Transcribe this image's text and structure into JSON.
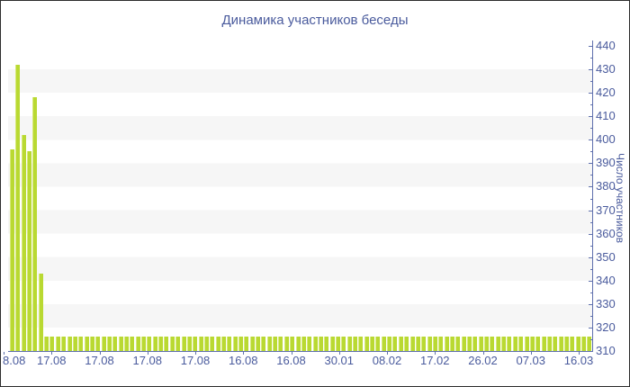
{
  "title": "Динамика участников беседы",
  "colors": {
    "border": "#2e2e2e",
    "text": "#4a5b9d",
    "axis": "#5f70ad",
    "band": "#f6f6f6",
    "bar": "#b9d932",
    "barlight": "#d7e97e"
  },
  "chart_data": {
    "type": "bar",
    "title": "Динамика участников беседы",
    "xlabel": "",
    "ylabel": "Число участников",
    "ylim": [
      310,
      440
    ],
    "y_tick_step": 10,
    "y_tick_labels": [
      440,
      430,
      420,
      410,
      400,
      390,
      380,
      370,
      360,
      350,
      340,
      330,
      320,
      310
    ],
    "x_tick_labels": [
      "8.08",
      "17.08",
      "17.08",
      "17.08",
      "17.08",
      "16.08",
      "16.08",
      "30.01",
      "08.02",
      "17.02",
      "26.02",
      "07.03",
      "16.03"
    ],
    "grid": "horizontal striped bands",
    "legend": null,
    "axis_position": "right",
    "values": [
      396,
      432,
      402,
      395,
      418,
      343,
      316,
      316,
      316,
      316,
      316,
      316,
      316,
      316,
      316,
      316,
      316,
      316,
      316,
      316,
      316,
      316,
      316,
      316,
      316,
      316,
      316,
      316,
      316,
      316,
      316,
      316,
      316,
      316,
      316,
      316,
      316,
      316,
      316,
      316,
      316,
      316,
      316,
      316,
      316,
      316,
      316,
      316,
      316,
      316,
      316,
      316,
      316,
      316,
      316,
      316,
      316,
      316,
      316,
      316,
      316,
      316,
      316,
      316,
      316,
      316,
      316,
      316,
      316,
      316,
      316,
      316,
      316,
      316,
      316,
      316,
      316,
      316,
      316,
      316,
      316,
      316,
      316,
      316,
      316,
      316,
      316,
      316,
      316,
      316,
      316,
      316,
      316,
      316,
      316,
      316,
      316,
      316,
      316,
      316,
      316,
      316
    ]
  }
}
